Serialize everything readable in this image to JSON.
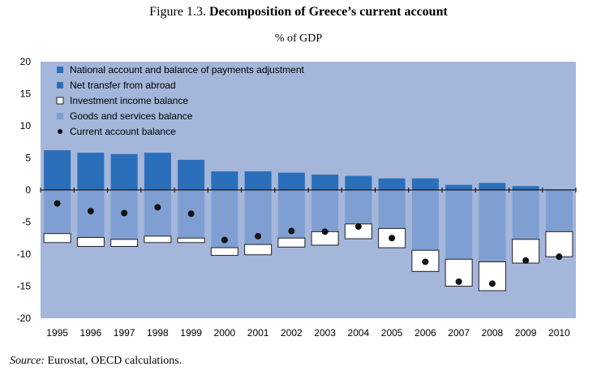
{
  "title": {
    "prefix": "Figure 1.3.",
    "main": "Decomposition of Greece’s current account"
  },
  "subtitle": "% of GDP",
  "source": {
    "label": "Source:",
    "text": "Eurostat, OECD calculations."
  },
  "chart_data": {
    "type": "bar",
    "stacked": true,
    "categories": [
      "1995",
      "1996",
      "1997",
      "1998",
      "1999",
      "2000",
      "2001",
      "2002",
      "2003",
      "2004",
      "2005",
      "2006",
      "2007",
      "2008",
      "2009",
      "2010"
    ],
    "ylim": [
      -20,
      20
    ],
    "yticks": [
      20,
      15,
      10,
      5,
      0,
      -5,
      -10,
      -15,
      -20
    ],
    "grid": false,
    "legend_position": "top-left",
    "series": [
      {
        "name": "National account and balance of payments adjustment",
        "kind": "bar",
        "values": [
          0,
          0,
          0,
          0,
          0,
          0,
          0,
          0,
          0,
          0,
          0,
          0,
          0,
          0,
          0,
          0
        ]
      },
      {
        "name": "Net transfer from abroad",
        "kind": "bar",
        "values": [
          6.2,
          5.8,
          5.6,
          5.8,
          4.7,
          2.9,
          2.9,
          2.7,
          2.4,
          2.2,
          1.8,
          1.8,
          0.8,
          1.1,
          0.6,
          0.1
        ]
      },
      {
        "name": "Investment income balance",
        "kind": "bar",
        "values": [
          -1.4,
          -1.4,
          -1.1,
          -1.0,
          -0.7,
          -1.2,
          -1.6,
          -1.4,
          -2.1,
          -2.3,
          -3.0,
          -3.3,
          -4.2,
          -4.5,
          -3.7,
          -3.9
        ]
      },
      {
        "name": "Goods and services balance",
        "kind": "bar",
        "values": [
          -6.8,
          -7.4,
          -7.7,
          -7.2,
          -7.5,
          -9.0,
          -8.5,
          -7.5,
          -6.5,
          -5.3,
          -6.0,
          -9.4,
          -10.8,
          -11.2,
          -7.7,
          -6.5
        ]
      },
      {
        "name": "Current account balance",
        "kind": "marker",
        "values": [
          -2.1,
          -3.3,
          -3.6,
          -2.7,
          -3.7,
          -7.8,
          -7.2,
          -6.4,
          -6.5,
          -5.7,
          -7.5,
          -11.2,
          -14.3,
          -14.6,
          -11.0,
          -10.4
        ]
      }
    ],
    "colors": {
      "plot_bg": "#a4b6da",
      "net_transfer": "#2b6fbb",
      "goods_services": "#7f9fd2",
      "investment_income": "#ffffff",
      "marker": "#111111"
    }
  }
}
